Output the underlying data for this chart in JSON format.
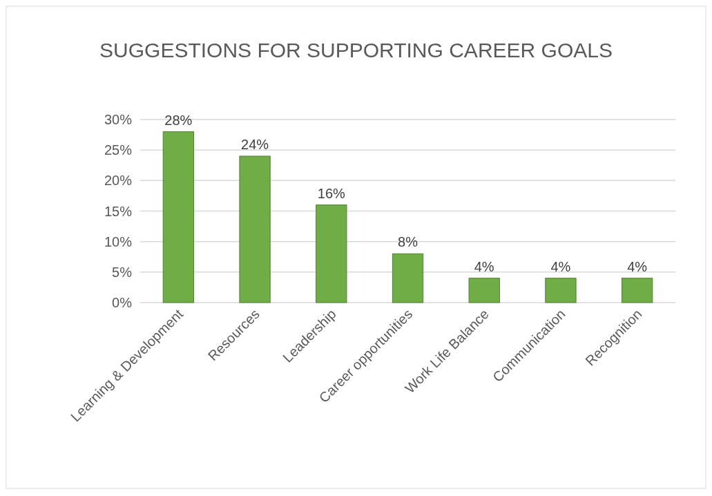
{
  "chart_data": {
    "type": "bar",
    "title": "SUGGESTIONS FOR SUPPORTING CAREER GOALS",
    "categories": [
      "Learning & Development",
      "Resources",
      "Leadership",
      "Career opportunities",
      "Work Life Balance",
      "Communication",
      "Recognition"
    ],
    "values": [
      28,
      24,
      16,
      8,
      4,
      4,
      4
    ],
    "value_labels": [
      "28%",
      "24%",
      "16%",
      "8%",
      "4%",
      "4%",
      "4%"
    ],
    "color": "#70ad47",
    "ylim": [
      0,
      30
    ],
    "yticks": [
      {
        "value": 0,
        "label": "0%"
      },
      {
        "value": 5,
        "label": "5%"
      },
      {
        "value": 10,
        "label": "10%"
      },
      {
        "value": 15,
        "label": "15%"
      },
      {
        "value": 20,
        "label": "20%"
      },
      {
        "value": 25,
        "label": "25%"
      },
      {
        "value": 30,
        "label": "30%"
      }
    ],
    "grid": "y"
  }
}
